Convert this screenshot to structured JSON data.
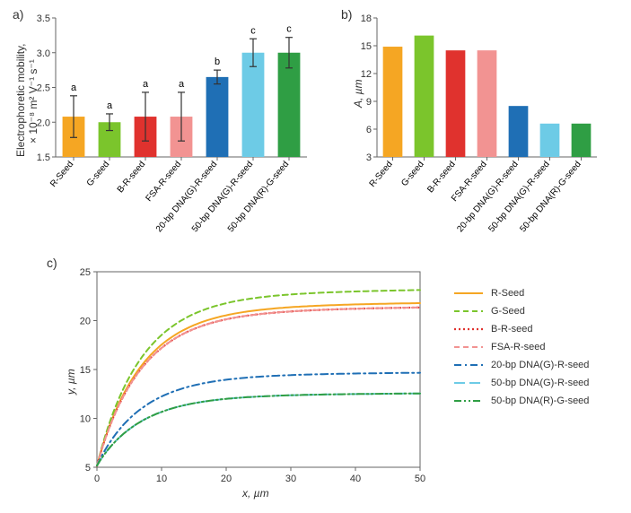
{
  "panelA": {
    "label": "a)",
    "type": "bar",
    "ylabel_line1": "Electrophoretic mobility,",
    "ylabel_line2": "× 10⁻⁸ m² V⁻¹ s⁻¹",
    "ylim": [
      1.5,
      3.5
    ],
    "yticks": [
      1.5,
      2.0,
      2.5,
      3.0,
      3.5
    ],
    "categories": [
      "R-Seed",
      "G-seed",
      "B-R-seed",
      "FSA-R-seed",
      "20-bp DNA(G)-R-seed",
      "50-bp DNA(G)-R-seed",
      "50-bp DNA(R)-G-seed"
    ],
    "values": [
      2.08,
      2.0,
      2.08,
      2.08,
      2.65,
      3.0,
      3.0
    ],
    "err_low": [
      0.3,
      0.12,
      0.35,
      0.35,
      0.1,
      0.2,
      0.22
    ],
    "err_high": [
      0.3,
      0.12,
      0.35,
      0.35,
      0.1,
      0.2,
      0.22
    ],
    "sig": [
      "a",
      "a",
      "a",
      "a",
      "b",
      "c",
      "c"
    ],
    "colors": [
      "#f5a623",
      "#7bc52c",
      "#e0322e",
      "#f29392",
      "#1f6fb5",
      "#6dcbe6",
      "#2f9e44"
    ],
    "bar_width": 0.62,
    "label_fontsize": 12,
    "err_color": "#333333"
  },
  "panelB": {
    "label": "b)",
    "type": "bar",
    "ylabel": "A, µm",
    "ylim": [
      3,
      18
    ],
    "yticks": [
      3,
      6,
      9,
      12,
      15,
      18
    ],
    "categories": [
      "R-Seed",
      "G-seed",
      "B-R-seed",
      "FSA-R-seed",
      "20-bp DNA(G)-R-seed",
      "50-bp DNA(G)-R-seed",
      "50-bp DNA(R)-G-seed"
    ],
    "values": [
      14.9,
      16.1,
      14.5,
      14.5,
      8.5,
      6.6,
      6.6
    ],
    "colors": [
      "#f5a623",
      "#7bc52c",
      "#e0322e",
      "#f29392",
      "#1f6fb5",
      "#6dcbe6",
      "#2f9e44"
    ],
    "bar_width": 0.62,
    "label_fontsize": 12
  },
  "panelC": {
    "label": "c)",
    "type": "line",
    "xlabel": "x, µm",
    "ylabel": "y, µm",
    "xlim": [
      0,
      50
    ],
    "ylim": [
      5,
      25
    ],
    "xticks": [
      0,
      10,
      20,
      30,
      40,
      50
    ],
    "yticks": [
      5,
      10,
      15,
      20,
      25
    ],
    "label_fontsize": 12,
    "series": [
      {
        "name": "R-Seed",
        "A": 14.9,
        "color": "#f5a623",
        "width": 2,
        "dash": ""
      },
      {
        "name": "G-Seed",
        "A": 16.1,
        "color": "#7bc52c",
        "width": 2,
        "dash": "6,4"
      },
      {
        "name": "B-R-seed",
        "A": 14.5,
        "color": "#e0322e",
        "width": 2.2,
        "dash": "2,3"
      },
      {
        "name": "FSA-R-seed",
        "A": 14.5,
        "color": "#f29392",
        "width": 2,
        "dash": "6,4"
      },
      {
        "name": "20-bp DNA(G)-R-seed",
        "A": 8.5,
        "color": "#1f6fb5",
        "width": 2,
        "dash": "8,4,2,4"
      },
      {
        "name": "50-bp DNA(G)-R-seed",
        "A": 6.6,
        "color": "#6dcbe6",
        "width": 2,
        "dash": "12,5"
      },
      {
        "name": "50-bp DNA(R)-G-seed",
        "A": 6.6,
        "color": "#2f9e44",
        "width": 2,
        "dash": "8,3,2,3,2,3"
      }
    ],
    "legend": [
      "R-Seed",
      "G-Seed",
      "B-R-seed",
      "FSA-R-seed",
      "20-bp DNA(G)-R-seed",
      "50-bp DNA(G)-R-seed",
      "50-bp DNA(R)-G-seed"
    ]
  }
}
